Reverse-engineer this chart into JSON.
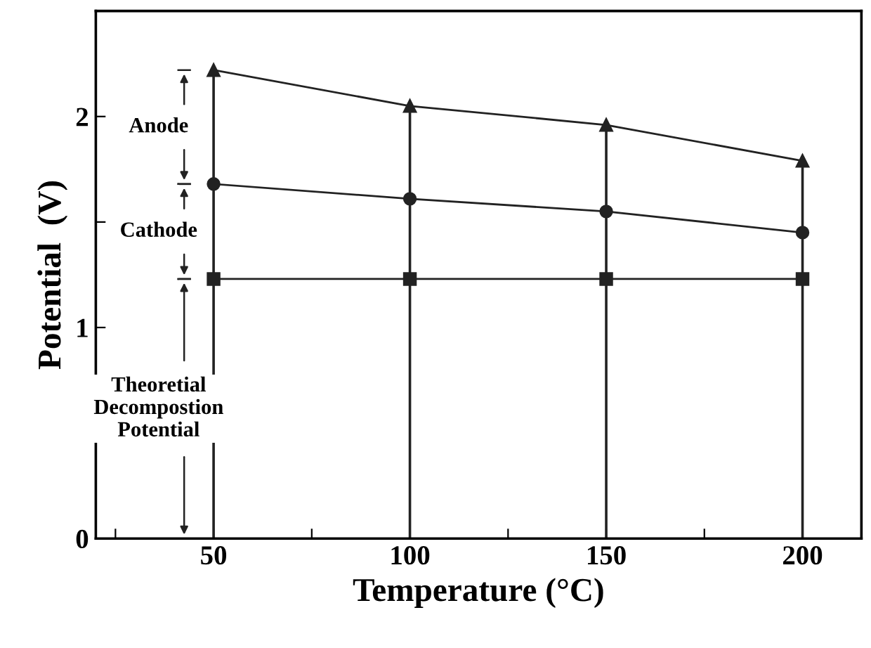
{
  "chart_data": {
    "type": "line",
    "xlabel": "Temperature (°C)",
    "ylabel": "Potential  (V)",
    "x": [
      50,
      100,
      150,
      200
    ],
    "series": [
      {
        "color": "#222222",
        "marker": "none",
        "values": [
          2.22,
          2.05,
          1.96,
          1.79
        ]
      },
      {
        "type": "lollipop",
        "color": "#222222",
        "marker": "triangle",
        "values": [
          2.22,
          2.05,
          1.96,
          1.79
        ]
      },
      {
        "color": "#222222",
        "marker": "circle",
        "values": [
          1.68,
          1.61,
          1.55,
          1.45
        ]
      },
      {
        "color": "#222222",
        "marker": "square",
        "values": [
          1.23,
          1.23,
          1.23,
          1.23
        ]
      }
    ],
    "xlim": [
      20,
      215
    ],
    "xticks": [
      {
        "value": 25,
        "label": null
      },
      50,
      {
        "value": 75,
        "label": null
      },
      100,
      {
        "value": 125,
        "label": null
      },
      150,
      {
        "value": 175,
        "label": null
      },
      200
    ],
    "ylim": [
      0,
      2.5
    ],
    "yticks": [
      0,
      {
        "value": 0.5,
        "label": null
      },
      1,
      {
        "value": 1.5,
        "label": null
      },
      2
    ],
    "grid": false,
    "legend": false,
    "annotations": [
      "Anode",
      "Cathode",
      "Theoretial\nDecompostion\nPotential"
    ]
  }
}
